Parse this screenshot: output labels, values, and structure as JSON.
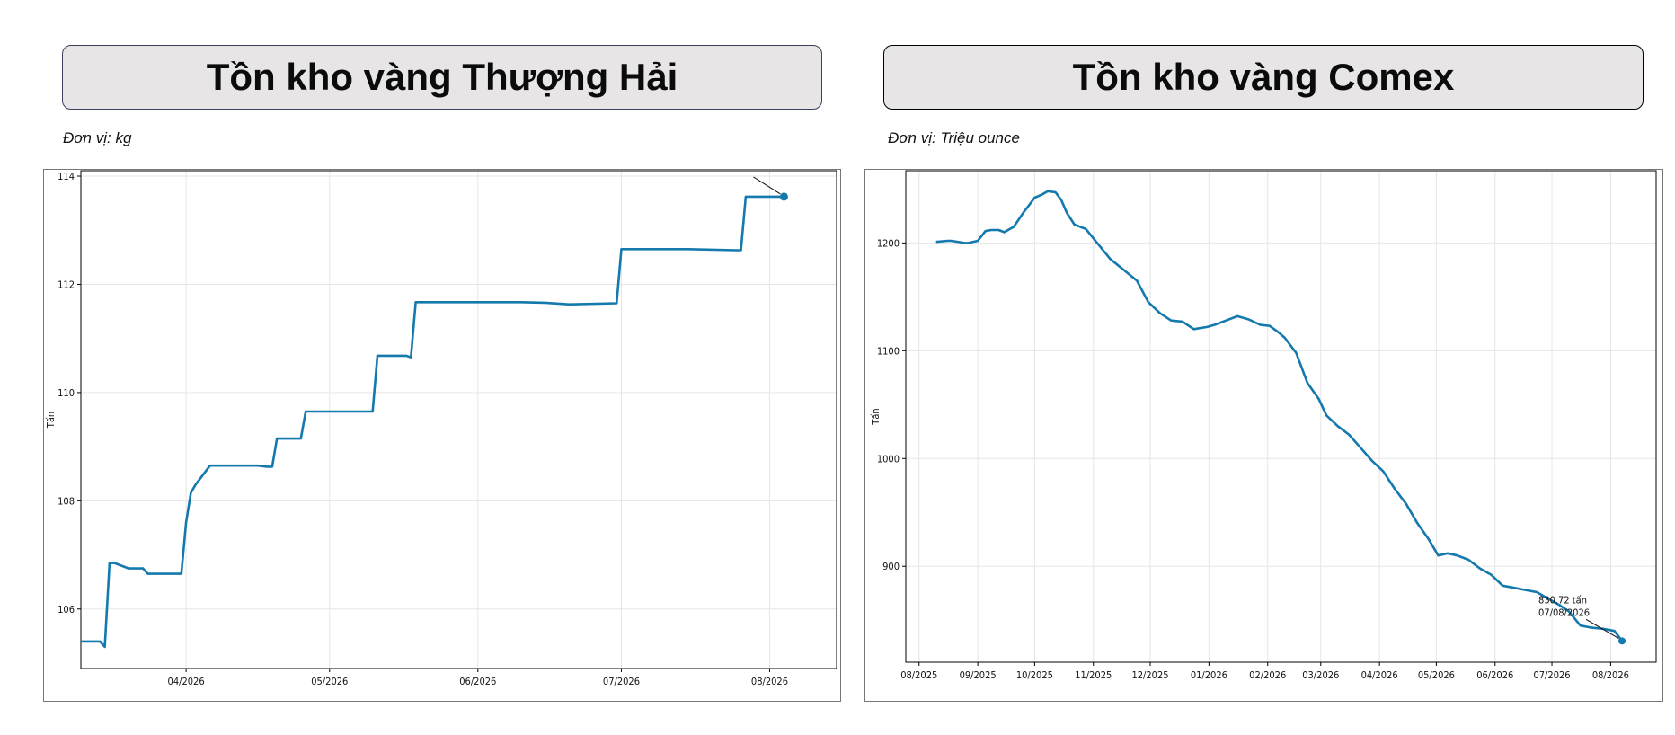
{
  "panels": {
    "left": {
      "title": "Tồn kho vàng Thượng Hải",
      "unit": "Đơn vị: kg"
    },
    "right": {
      "title": "Tồn kho vàng Comex",
      "unit": "Đơn vị: Triệu ounce"
    }
  },
  "colors": {
    "line": "#1479ad",
    "grid": "#e6e6e6",
    "axis": "#000000"
  },
  "chart_data": [
    {
      "type": "line",
      "title": "",
      "xlabel": "",
      "ylabel": "Tấn",
      "ylim": [
        104.9,
        114.1
      ],
      "xlim": [
        "2026-03-10",
        "2026-08-15"
      ],
      "grid": true,
      "yticks": [
        106,
        108,
        110,
        112,
        114
      ],
      "xticks": [
        {
          "date": "2026-04-01",
          "label": "04/2026"
        },
        {
          "date": "2026-05-01",
          "label": "05/2026"
        },
        {
          "date": "2026-06-01",
          "label": "06/2026"
        },
        {
          "date": "2026-07-01",
          "label": "07/2026"
        },
        {
          "date": "2026-08-01",
          "label": "08/2026"
        }
      ],
      "series": [
        {
          "x": [
            "2026-03-10",
            "2026-03-14",
            "2026-03-15",
            "2026-03-16",
            "2026-03-17",
            "2026-03-20",
            "2026-03-21",
            "2026-03-23",
            "2026-03-24",
            "2026-03-25",
            "2026-03-26",
            "2026-03-27",
            "2026-03-31",
            "2026-04-01",
            "2026-04-02",
            "2026-04-03",
            "2026-04-06",
            "2026-04-07",
            "2026-04-15",
            "2026-04-16",
            "2026-04-18",
            "2026-04-19",
            "2026-04-20",
            "2026-04-21",
            "2026-04-25",
            "2026-04-26",
            "2026-04-30",
            "2026-05-10",
            "2026-05-11",
            "2026-05-17",
            "2026-05-18",
            "2026-05-19",
            "2026-06-10",
            "2026-06-15",
            "2026-06-20",
            "2026-06-30",
            "2026-07-01",
            "2026-07-15",
            "2026-07-25",
            "2026-07-26",
            "2026-07-27",
            "2026-08-04"
          ],
          "y": [
            105.4,
            105.4,
            105.3,
            106.85,
            106.85,
            106.75,
            106.75,
            106.75,
            106.65,
            106.65,
            106.65,
            106.65,
            106.65,
            107.6,
            108.15,
            108.3,
            108.65,
            108.65,
            108.65,
            108.65,
            108.63,
            108.63,
            109.15,
            109.15,
            109.15,
            109.65,
            109.65,
            109.65,
            110.68,
            110.68,
            110.65,
            111.67,
            111.67,
            111.66,
            111.63,
            111.65,
            112.65,
            112.65,
            112.63,
            112.63,
            113.62,
            113.62
          ]
        }
      ],
      "marker": {
        "x": "2026-08-04",
        "y": 113.62
      }
    },
    {
      "type": "line",
      "title": "",
      "xlabel": "",
      "ylabel": "Tấn",
      "ylim": [
        811,
        1267
      ],
      "xlim": [
        "2025-07-25",
        "2026-08-25"
      ],
      "grid": true,
      "yticks": [
        900,
        1000,
        1100,
        1200
      ],
      "xticks": [
        {
          "date": "2025-08-01",
          "label": "08/2025"
        },
        {
          "date": "2025-09-01",
          "label": "09/2025"
        },
        {
          "date": "2025-10-01",
          "label": "10/2025"
        },
        {
          "date": "2025-11-01",
          "label": "11/2025"
        },
        {
          "date": "2025-12-01",
          "label": "12/2025"
        },
        {
          "date": "2026-01-01",
          "label": "01/2026"
        },
        {
          "date": "2026-02-01",
          "label": "02/2026"
        },
        {
          "date": "2026-03-01",
          "label": "03/2026"
        },
        {
          "date": "2026-04-01",
          "label": "04/2026"
        },
        {
          "date": "2026-05-01",
          "label": "05/2026"
        },
        {
          "date": "2026-06-01",
          "label": "06/2026"
        },
        {
          "date": "2026-07-01",
          "label": "07/2026"
        },
        {
          "date": "2026-08-01",
          "label": "08/2026"
        }
      ],
      "series": [
        {
          "x": [
            "2025-08-10",
            "2025-08-16",
            "2025-08-18",
            "2025-08-25",
            "2025-08-27",
            "2025-09-01",
            "2025-09-05",
            "2025-09-08",
            "2025-09-12",
            "2025-09-15",
            "2025-09-20",
            "2025-09-25",
            "2025-09-28",
            "2025-10-01",
            "2025-10-05",
            "2025-10-08",
            "2025-10-12",
            "2025-10-15",
            "2025-10-18",
            "2025-10-22",
            "2025-10-28",
            "2025-11-03",
            "2025-11-10",
            "2025-11-17",
            "2025-11-24",
            "2025-11-30",
            "2025-12-06",
            "2025-12-12",
            "2025-12-18",
            "2025-12-24",
            "2025-12-31",
            "2026-01-04",
            "2026-01-10",
            "2026-01-16",
            "2026-01-22",
            "2026-01-28",
            "2026-02-02",
            "2026-02-06",
            "2026-02-10",
            "2026-02-16",
            "2026-02-22",
            "2026-02-28",
            "2026-03-04",
            "2026-03-10",
            "2026-03-16",
            "2026-03-22",
            "2026-03-28",
            "2026-04-03",
            "2026-04-09",
            "2026-04-15",
            "2026-04-21",
            "2026-04-27",
            "2026-05-02",
            "2026-05-07",
            "2026-05-12",
            "2026-05-18",
            "2026-05-24",
            "2026-05-30",
            "2026-06-05",
            "2026-06-11",
            "2026-06-17",
            "2026-06-23",
            "2026-06-29",
            "2026-07-05",
            "2026-07-10",
            "2026-07-16",
            "2026-07-22",
            "2026-07-28",
            "2026-08-03",
            "2026-08-07"
          ],
          "y": [
            1201,
            1202,
            1202,
            1200,
            1200,
            1202,
            1211,
            1212,
            1212,
            1210,
            1215,
            1228,
            1235,
            1242,
            1245,
            1248,
            1247,
            1240,
            1228,
            1217,
            1213,
            1200,
            1185,
            1175,
            1165,
            1145,
            1135,
            1128,
            1127,
            1120,
            1122,
            1124,
            1128,
            1132,
            1129,
            1124,
            1123,
            1118,
            1112,
            1098,
            1070,
            1055,
            1040,
            1030,
            1022,
            1010,
            998,
            988,
            972,
            958,
            940,
            925,
            910,
            912,
            910,
            906,
            898,
            892,
            882,
            880,
            878,
            876,
            870,
            864,
            858,
            845,
            843,
            842,
            840,
            830.72
          ]
        }
      ],
      "annotation": {
        "x": "2026-08-07",
        "y": 830.72,
        "line1": "830.72 tấn",
        "line2": "07/08/2026"
      }
    }
  ]
}
